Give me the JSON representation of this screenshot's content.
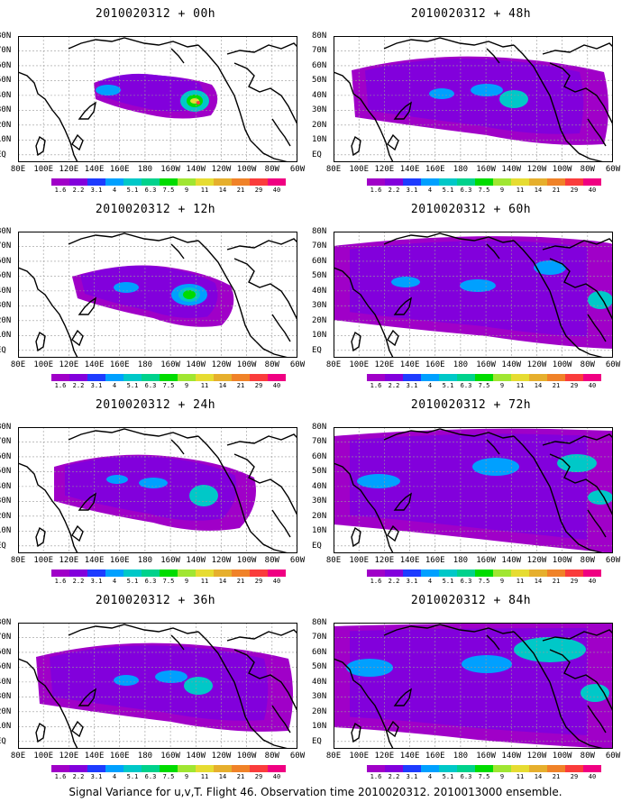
{
  "panels": [
    {
      "title": "2010020312 + 00h",
      "level": 0
    },
    {
      "title": "2010020312 + 48h",
      "level": 3
    },
    {
      "title": "2010020312 + 12h",
      "level": 1
    },
    {
      "title": "2010020312 + 60h",
      "level": 4
    },
    {
      "title": "2010020312 + 24h",
      "level": 2
    },
    {
      "title": "2010020312 + 72h",
      "level": 5
    },
    {
      "title": "2010020312 + 36h",
      "level": 3
    },
    {
      "title": "2010020312 + 84h",
      "level": 6
    }
  ],
  "lon_labels": [
    "80E",
    "100E",
    "120E",
    "140E",
    "160E",
    "180",
    "160W",
    "140W",
    "120W",
    "100W",
    "80W",
    "60W"
  ],
  "lat_labels": [
    "80N",
    "70N",
    "60N",
    "50N",
    "40N",
    "30N",
    "20N",
    "10N",
    "EQ"
  ],
  "colorbar": {
    "colors": [
      "#a000c8",
      "#8200dc",
      "#1e3cff",
      "#00a0ff",
      "#00c8c8",
      "#00d28c",
      "#00dc00",
      "#a0e632",
      "#e6dc32",
      "#e6af2d",
      "#f08228",
      "#fa3c3c",
      "#f00082"
    ],
    "labels": [
      "1.6",
      "2.2",
      "3.1",
      "4",
      "5.1",
      "6.3",
      "7.5",
      "9",
      "11",
      "14",
      "21",
      "29",
      "40"
    ]
  },
  "caption": "Signal Variance for u,v,T. Flight 46. Observation time 2010020312. 2010013000 ensemble."
}
